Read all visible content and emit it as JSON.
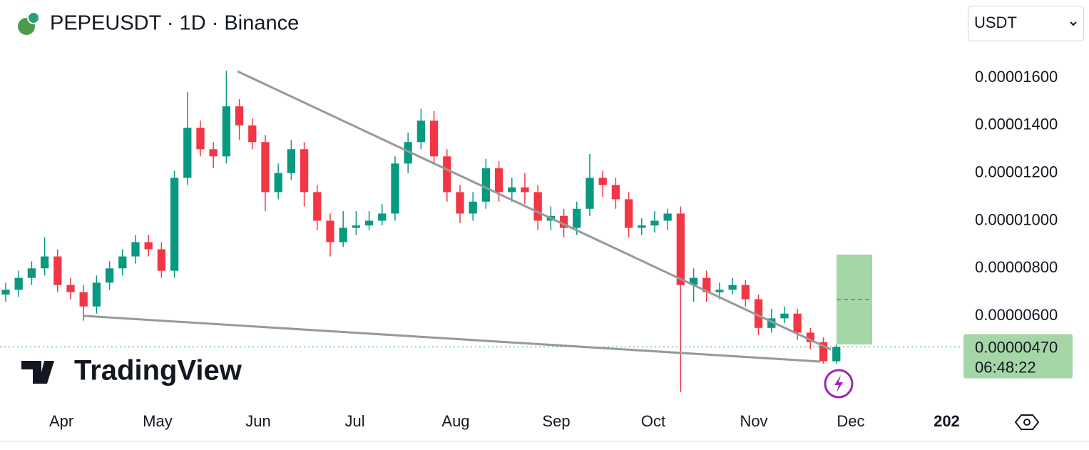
{
  "chart_data": {
    "type": "candlestick",
    "title": "PEPEUSDT · 1D · Binance",
    "currency": "USDT",
    "watermark": "TradingView",
    "up_color": "#089981",
    "down_color": "#f23645",
    "open": [
      6.9e-06,
      7.1e-06,
      7.6e-06,
      8e-06,
      8.5e-06,
      7.3e-06,
      7e-06,
      6.4e-06,
      7.4e-06,
      8e-06,
      8.5e-06,
      9.1e-06,
      8.8e-06,
      7.9e-06,
      1.18e-05,
      1.39e-05,
      1.3e-05,
      1.27e-05,
      1.48e-05,
      1.4e-05,
      1.33e-05,
      1.12e-05,
      1.2e-05,
      1.3e-05,
      1.12e-05,
      1e-05,
      9.1e-06,
      9.7e-06,
      9.8e-06,
      1e-05,
      1.03e-05,
      1.24e-05,
      1.33e-05,
      1.42e-05,
      1.27e-05,
      1.12e-05,
      1.03e-05,
      1.08e-05,
      1.22e-05,
      1.12e-05,
      1.14e-05,
      1.12e-05,
      1e-05,
      1.02e-05,
      9.7e-06,
      1.05e-05,
      1.18e-05,
      1.15e-05,
      1.09e-05,
      9.7e-06,
      9.8e-06,
      1e-05,
      1.03e-05,
      7.3e-06,
      7.6e-06,
      7e-06,
      7.1e-06,
      7.3e-06,
      6.7e-06,
      5.5e-06,
      5.9e-06,
      6.1e-06,
      5.3e-06,
      4.9e-06,
      4.1e-06
    ],
    "high": [
      7.4e-06,
      7.9e-06,
      8.3e-06,
      9.3e-06,
      8.8e-06,
      7.6e-06,
      7.3e-06,
      7.7e-06,
      8.3e-06,
      8.8e-06,
      9.4e-06,
      9.4e-06,
      9.1e-06,
      1.21e-05,
      1.54e-05,
      1.42e-05,
      1.33e-05,
      1.63e-05,
      1.51e-05,
      1.43e-05,
      1.36e-05,
      1.24e-05,
      1.34e-05,
      1.33e-05,
      1.15e-05,
      1.03e-05,
      1.04e-05,
      1.04e-05,
      1.04e-05,
      1.07e-05,
      1.27e-05,
      1.37e-05,
      1.47e-05,
      1.46e-05,
      1.3e-05,
      1.15e-05,
      1.12e-05,
      1.26e-05,
      1.25e-05,
      1.18e-05,
      1.2e-05,
      1.15e-05,
      1.06e-05,
      1.05e-05,
      1.08e-05,
      1.28e-05,
      1.21e-05,
      1.18e-05,
      1.12e-05,
      1.01e-05,
      1.04e-05,
      1.05e-05,
      1.06e-05,
      8e-06,
      7.9e-06,
      7.4e-06,
      7.6e-06,
      7.5e-06,
      6.9e-06,
      6.3e-06,
      6.4e-06,
      6.3e-06,
      5.5e-06,
      5.1e-06,
      4.8e-06
    ],
    "low": [
      6.6e-06,
      6.8e-06,
      7.3e-06,
      7.7e-06,
      7e-06,
      6.7e-06,
      5.8e-06,
      6.1e-06,
      7.1e-06,
      7.7e-06,
      8.2e-06,
      8.5e-06,
      7.6e-06,
      7.6e-06,
      1.15e-05,
      1.27e-05,
      1.22e-05,
      1.24e-05,
      1.34e-05,
      1.3e-05,
      1.04e-05,
      1.09e-05,
      1.17e-05,
      1.06e-05,
      9.6e-06,
      8.5e-06,
      8.9e-06,
      9.4e-06,
      9.6e-06,
      9.8e-06,
      1e-05,
      1.2e-05,
      1.3e-05,
      1.24e-05,
      1.08e-05,
      9.9e-06,
      1e-05,
      1.05e-05,
      1.08e-05,
      1.08e-05,
      1.07e-05,
      9.6e-06,
      9.6e-06,
      9.3e-06,
      9.4e-06,
      1.02e-05,
      1.1e-05,
      1.05e-05,
      9.3e-06,
      9.4e-06,
      9.5e-06,
      9.6e-06,
      2.8e-06,
      6.6e-06,
      6.6e-06,
      6.7e-06,
      6.9e-06,
      6.4e-06,
      5.2e-06,
      5.3e-06,
      5.7e-06,
      5e-06,
      4.6e-06,
      4e-06,
      4e-06
    ],
    "close": [
      7.1e-06,
      7.6e-06,
      8e-06,
      8.5e-06,
      7.3e-06,
      7e-06,
      6.4e-06,
      7.4e-06,
      8e-06,
      8.5e-06,
      9.1e-06,
      8.8e-06,
      7.9e-06,
      1.18e-05,
      1.39e-05,
      1.3e-05,
      1.27e-05,
      1.48e-05,
      1.4e-05,
      1.33e-05,
      1.12e-05,
      1.2e-05,
      1.3e-05,
      1.12e-05,
      1e-05,
      9.1e-06,
      9.7e-06,
      9.8e-06,
      1e-05,
      1.03e-05,
      1.24e-05,
      1.33e-05,
      1.42e-05,
      1.27e-05,
      1.12e-05,
      1.03e-05,
      1.08e-05,
      1.22e-05,
      1.12e-05,
      1.14e-05,
      1.12e-05,
      1e-05,
      1.02e-05,
      9.7e-06,
      1.05e-05,
      1.18e-05,
      1.15e-05,
      1.09e-05,
      9.7e-06,
      9.8e-06,
      1e-05,
      1.03e-05,
      7.3e-06,
      7.6e-06,
      7e-06,
      7.1e-06,
      7.3e-06,
      6.7e-06,
      5.5e-06,
      5.9e-06,
      6.1e-06,
      5.3e-06,
      4.9e-06,
      4.1e-06,
      4.7e-06
    ],
    "last_price": {
      "value": 4.7e-06,
      "label": "0.00000470"
    },
    "countdown": "06:48:22",
    "xlim": [
      -0.44,
      73.19
    ],
    "xticks": [
      {
        "value": 4.29,
        "label": "Apr"
      },
      {
        "value": 11.7,
        "label": "May"
      },
      {
        "value": 19.45,
        "label": "Jun"
      },
      {
        "value": 26.9,
        "label": "Jul"
      },
      {
        "value": 34.67,
        "label": "Aug"
      },
      {
        "value": 42.42,
        "label": "Sep"
      },
      {
        "value": 49.89,
        "label": "Oct"
      },
      {
        "value": 57.64,
        "label": "Nov"
      },
      {
        "value": 65.11,
        "label": "Dec"
      },
      {
        "value": 72.5,
        "label": "202"
      }
    ],
    "ylim": [
      2.5e-06,
      1.687e-05
    ],
    "yticks": [
      {
        "value": 1.6e-05,
        "label": "0.00001600"
      },
      {
        "value": 1.4e-05,
        "label": "0.00001400"
      },
      {
        "value": 1.2e-05,
        "label": "0.00001200"
      },
      {
        "value": 1e-05,
        "label": "0.00001000"
      },
      {
        "value": 8e-06,
        "label": "0.00000800"
      },
      {
        "value": 6e-06,
        "label": "0.00000600"
      }
    ]
  }
}
